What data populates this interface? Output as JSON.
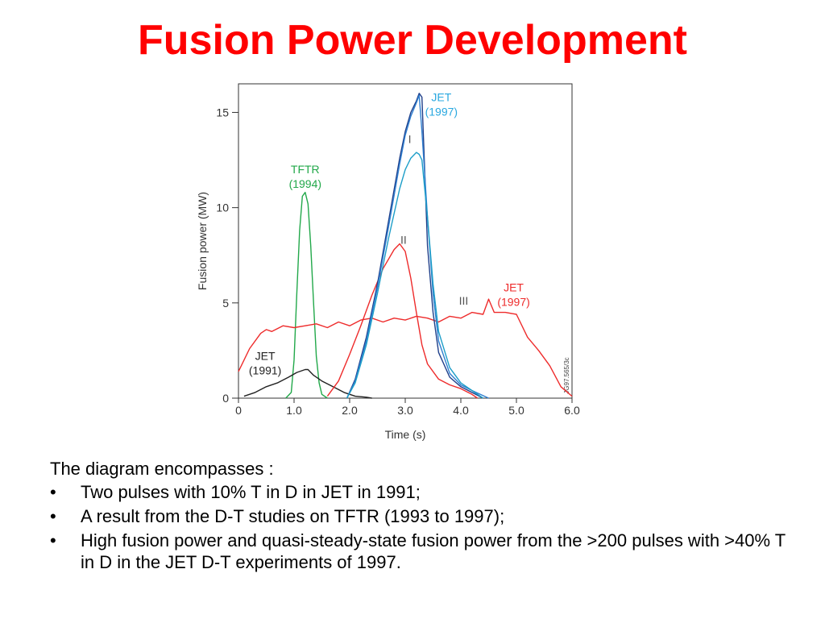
{
  "slide": {
    "title": "Fusion Power Development",
    "title_color": "#ff0000",
    "intro": "The diagram encompasses :",
    "bullet_glyph": "•",
    "bullets": [
      "Two pulses with 10% T in D in JET in 1991;",
      "A result from the D-T studies on TFTR (1993 to 1997);",
      "High fusion power and quasi-steady-state fusion power from the >200 pulses with >40% T in D in the JET D-T experiments of 1997."
    ]
  },
  "chart_data": {
    "type": "line",
    "xlabel": "Time (s)",
    "ylabel": "Fusion power (MW)",
    "xlim": [
      0,
      6.0
    ],
    "ylim": [
      0,
      16.5
    ],
    "xticks": [
      "0",
      "1.0",
      "2.0",
      "3.0",
      "4.0",
      "5.0",
      "6.0"
    ],
    "xtick_values": [
      0,
      1,
      2,
      3,
      4,
      5,
      6
    ],
    "yticks": [
      "0",
      "5",
      "10",
      "15"
    ],
    "ytick_values": [
      0,
      5,
      10,
      15
    ],
    "grid": false,
    "watermark": "JG97.565/3c",
    "annotations": [
      {
        "text": [
          "JET",
          "(1997)"
        ],
        "color": "#29a8e0",
        "x": 3.65,
        "y": 15.6
      },
      {
        "text": [
          "TFTR",
          "(1994)"
        ],
        "color": "#22a84a",
        "x": 1.2,
        "y": 11.8
      },
      {
        "text": [
          "JET",
          "(1997)"
        ],
        "color": "#ee2b2b",
        "x": 4.95,
        "y": 5.6
      },
      {
        "text": [
          "JET",
          "(1991)"
        ],
        "color": "#222222",
        "x": 0.48,
        "y": 2.0
      },
      {
        "text": [
          "I"
        ],
        "color": "#555555",
        "x": 3.08,
        "y": 13.4
      },
      {
        "text": [
          "II"
        ],
        "color": "#555555",
        "x": 2.97,
        "y": 8.1
      },
      {
        "text": [
          "III"
        ],
        "color": "#555555",
        "x": 4.05,
        "y": 4.9
      }
    ],
    "series": [
      {
        "color": "#22a84a",
        "x": [
          0.85,
          0.95,
          1.0,
          1.05,
          1.1,
          1.15,
          1.2,
          1.25,
          1.3,
          1.35,
          1.4,
          1.45,
          1.5,
          1.6
        ],
        "y": [
          0,
          0.3,
          2.0,
          5.5,
          8.8,
          10.6,
          10.8,
          10.2,
          8.0,
          5.0,
          2.2,
          0.8,
          0.2,
          0
        ]
      },
      {
        "color": "#222222",
        "x": [
          0.1,
          0.3,
          0.5,
          0.7,
          0.9,
          1.05,
          1.2,
          1.25,
          1.35,
          1.5,
          1.7,
          1.9,
          2.1,
          2.3,
          2.4
        ],
        "y": [
          0.1,
          0.3,
          0.6,
          0.8,
          1.1,
          1.35,
          1.5,
          1.5,
          1.2,
          0.9,
          0.6,
          0.3,
          0.1,
          0.05,
          0
        ]
      },
      {
        "color": "#ee2b2b",
        "x": [
          0,
          0.2,
          0.4,
          0.5,
          0.6,
          0.8,
          1.0,
          1.2,
          1.4,
          1.6,
          1.8,
          2.0,
          2.2,
          2.4,
          2.6,
          2.8,
          3.0,
          3.2,
          3.4,
          3.6,
          3.8,
          4.0,
          4.2,
          4.4,
          4.5,
          4.6,
          4.8,
          5.0,
          5.2,
          5.4,
          5.6,
          5.8,
          6.0
        ],
        "y": [
          1.4,
          2.6,
          3.4,
          3.6,
          3.5,
          3.8,
          3.7,
          3.8,
          3.9,
          3.7,
          4.0,
          3.8,
          4.1,
          4.2,
          4.0,
          4.2,
          4.1,
          4.3,
          4.2,
          4.0,
          4.3,
          4.2,
          4.5,
          4.4,
          5.2,
          4.5,
          4.5,
          4.4,
          3.2,
          2.5,
          1.7,
          0.6,
          0.1
        ]
      },
      {
        "color": "#ee2b2b",
        "x": [
          1.6,
          1.8,
          2.0,
          2.2,
          2.4,
          2.6,
          2.8,
          2.9,
          3.0,
          3.1,
          3.2,
          3.3,
          3.4,
          3.6,
          3.8,
          4.0,
          4.2,
          4.3
        ],
        "y": [
          0.1,
          0.9,
          2.3,
          3.8,
          5.4,
          6.8,
          7.8,
          8.1,
          7.7,
          6.3,
          4.5,
          2.8,
          1.8,
          1.0,
          0.7,
          0.5,
          0.2,
          0
        ]
      },
      {
        "color": "#1f3f8a",
        "x": [
          1.95,
          2.1,
          2.3,
          2.5,
          2.7,
          2.9,
          3.0,
          3.1,
          3.2,
          3.25,
          3.3,
          3.35,
          3.4,
          3.5,
          3.6,
          3.8,
          4.0,
          4.2,
          4.4
        ],
        "y": [
          0,
          1.0,
          3.2,
          6.0,
          9.3,
          12.6,
          14.0,
          15.0,
          15.6,
          16.0,
          15.8,
          12.0,
          8.0,
          4.5,
          2.4,
          1.1,
          0.6,
          0.3,
          0
        ]
      },
      {
        "color": "#2f7fd0",
        "x": [
          1.95,
          2.1,
          2.3,
          2.5,
          2.7,
          2.9,
          3.0,
          3.1,
          3.2,
          3.25,
          3.3,
          3.4,
          3.5,
          3.6,
          3.8,
          4.0,
          4.2,
          4.5
        ],
        "y": [
          0,
          0.9,
          3.0,
          5.8,
          9.0,
          12.3,
          13.8,
          14.8,
          15.5,
          15.9,
          14.0,
          9.5,
          5.5,
          3.0,
          1.3,
          0.7,
          0.4,
          0
        ]
      },
      {
        "color": "#1d9ec8",
        "x": [
          1.95,
          2.1,
          2.3,
          2.5,
          2.7,
          2.9,
          3.0,
          3.1,
          3.2,
          3.25,
          3.3,
          3.4,
          3.5,
          3.6,
          3.8,
          4.0,
          4.2,
          4.4
        ],
        "y": [
          0,
          0.8,
          2.8,
          5.5,
          8.4,
          11.0,
          12.0,
          12.6,
          12.9,
          12.8,
          12.5,
          9.5,
          6.0,
          3.5,
          1.6,
          0.8,
          0.4,
          0
        ]
      }
    ]
  }
}
